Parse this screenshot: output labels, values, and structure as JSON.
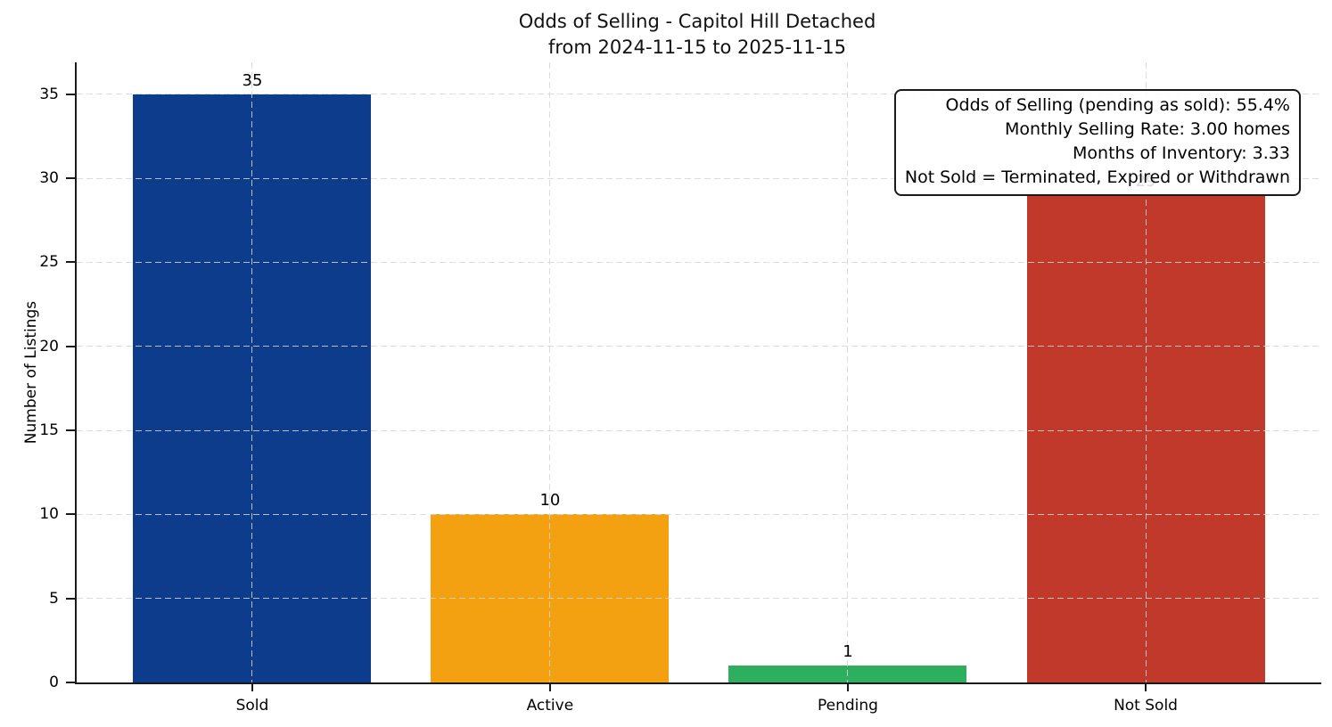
{
  "figure": {
    "title": "Odds of Selling - Capitol Hill Detached",
    "subtitle": "from 2024-11-15 to 2025-11-15"
  },
  "chart_data": {
    "type": "bar",
    "title": "Odds of Selling - Capitol Hill Detached",
    "subtitle": "from 2024-11-15 to 2025-11-15",
    "categories": [
      "Sold",
      "Active",
      "Pending",
      "Not Sold"
    ],
    "values": [
      35,
      10,
      1,
      29
    ],
    "bar_value_labels": [
      "35",
      "10",
      "1",
      "29"
    ],
    "bar_colors": [
      "#0d3c8c",
      "#f4a111",
      "#2eaf5f",
      "#c0392b"
    ],
    "xlabel": "",
    "ylabel": "Number of Listings",
    "ylim": [
      0,
      36.9
    ],
    "yticks": [
      0,
      5,
      10,
      15,
      20,
      25,
      30,
      35
    ],
    "grid": "dashed gridlines on both axes, drawn over bars",
    "legend": "none",
    "annotation_note": "value label 29 partially hidden behind stats box"
  },
  "annotation_box": {
    "lines": [
      "Odds of Selling (pending as sold): 55.4%",
      "Monthly Selling Rate: 3.00 homes",
      "Months of Inventory: 3.33",
      "Not Sold = Terminated, Expired or Withdrawn"
    ]
  }
}
